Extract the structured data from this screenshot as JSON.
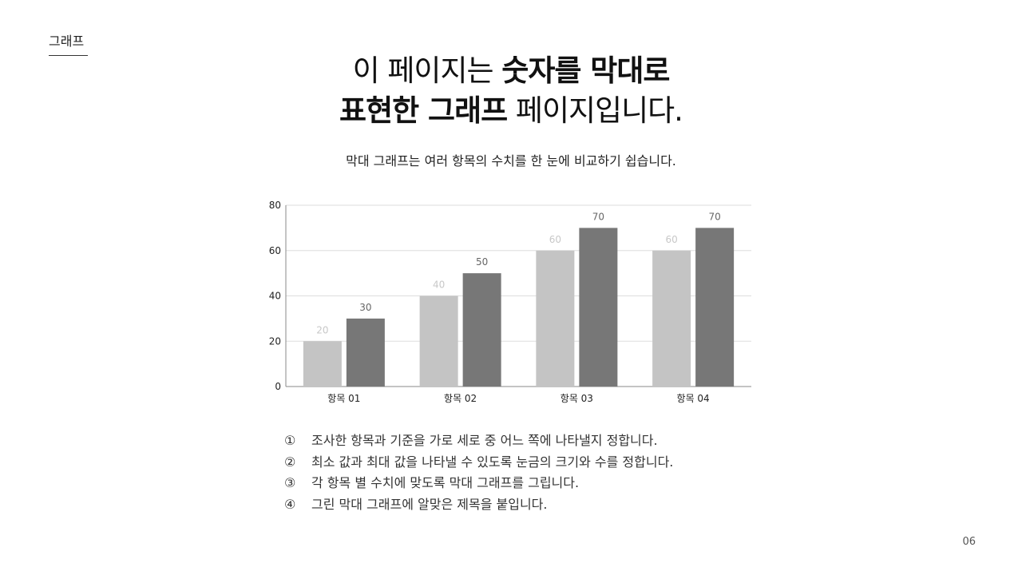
{
  "section_label": "그래프",
  "headline": {
    "line1_normal": "이 페이지는 ",
    "line1_bold": "숫자를 막대로",
    "line2_bold": "표현한 그래프",
    "line2_normal": " 페이지입니다."
  },
  "subtitle": "막대 그래프는 여러 항목의 수치를 한 눈에 비교하기 쉽습니다.",
  "chart_data": {
    "type": "bar",
    "categories": [
      "항목 01",
      "항목 02",
      "항목 03",
      "항목 04"
    ],
    "series": [
      {
        "values": [
          20,
          40,
          60,
          60
        ],
        "color": "#c4c4c4",
        "label_color": "#c8c8c8"
      },
      {
        "values": [
          30,
          50,
          70,
          70
        ],
        "color": "#777777",
        "label_color": "#666666"
      }
    ],
    "ylim": [
      0,
      80
    ],
    "yticks": [
      0,
      20,
      40,
      60,
      80
    ],
    "grid": true,
    "title": "",
    "xlabel": "",
    "ylabel": ""
  },
  "steps": [
    {
      "num": "①",
      "text": "조사한 항목과 기준을 가로 세로 중 어느 쪽에 나타낼지 정합니다."
    },
    {
      "num": "②",
      "text": "최소 값과 최대 값을 나타낼 수 있도록 눈금의 크기와 수를 정합니다."
    },
    {
      "num": "③",
      "text": "각 항목 별 수치에 맞도록 막대 그래프를 그립니다."
    },
    {
      "num": "④",
      "text": "그린 막대 그래프에 알맞은 제목을 붙입니다."
    }
  ],
  "page_number": "06"
}
